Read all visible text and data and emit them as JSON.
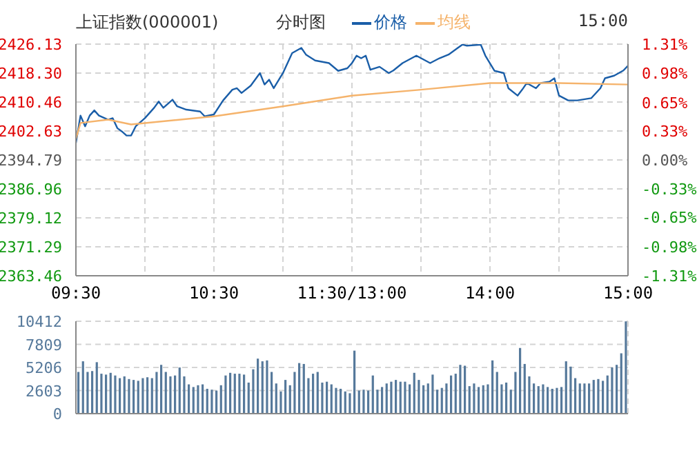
{
  "chart_data": [
    {
      "type": "line",
      "title": "上证指数(000001)",
      "subtitle": "分时图",
      "annotations": [
        "15:00"
      ],
      "legend": "top",
      "grid": true,
      "marker": "none",
      "categories": [
        "09:30",
        null,
        null,
        null,
        null,
        null,
        null,
        null,
        null,
        null,
        null,
        null,
        null,
        null,
        null,
        null,
        null,
        null,
        null,
        null,
        null,
        null,
        null,
        null,
        null,
        null,
        null,
        null,
        null,
        null,
        "10:30",
        null,
        null,
        null,
        null,
        null,
        null,
        null,
        null,
        null,
        null,
        null,
        null,
        null,
        null,
        null,
        null,
        null,
        null,
        null,
        null,
        null,
        null,
        null,
        null,
        null,
        null,
        null,
        null,
        null,
        "11:30/13:00",
        null,
        null,
        null,
        null,
        null,
        null,
        null,
        null,
        null,
        null,
        null,
        null,
        null,
        null,
        null,
        null,
        null,
        null,
        null,
        null,
        null,
        null,
        null,
        null,
        null,
        null,
        null,
        null,
        null,
        "14:00",
        null,
        null,
        null,
        null,
        null,
        null,
        null,
        null,
        null,
        null,
        null,
        null,
        null,
        null,
        null,
        null,
        null,
        null,
        null,
        null,
        null,
        null,
        null,
        null,
        null,
        null,
        null,
        null,
        null,
        "15:00"
      ],
      "ylim": [
        2363.46,
        2426.13
      ],
      "yticks": [
        2363.46,
        2371.29,
        2379.12,
        2386.96,
        2394.79,
        2402.63,
        2410.46,
        {
          "value": 2418.3,
          "label": "2418.30"
        },
        2426.13
      ],
      "y2lim": [
        -1.31,
        1.31
      ],
      "y2ticks": [
        {
          "value": -1.31,
          "label": "-1.31%"
        },
        {
          "value": -0.98,
          "label": "-0.98%"
        },
        {
          "value": -0.65,
          "label": "-0.65%"
        },
        {
          "value": -0.33,
          "label": "-0.33%"
        },
        {
          "value": 0,
          "label": "0.00%"
        },
        {
          "value": 0.33,
          "label": "0.33%"
        },
        {
          "value": 0.65,
          "label": "0.65%"
        },
        {
          "value": 0.98,
          "label": "0.98%"
        },
        {
          "value": 1.31,
          "label": "1.31%"
        }
      ],
      "series": [
        {
          "name": "价格",
          "color": "#1a5ea8",
          "values": [
            2399.4,
            2406.8,
            2403.9,
            2406.8,
            2408.2,
            2406.8,
            null,
            2405.7,
            2406.1,
            2403.4,
            2402.5,
            2401.4,
            2401.4,
            2403.9,
            null,
            2406.1,
            null,
            2408.9,
            2410.6,
            2408.9,
            null,
            2411.1,
            2409.3,
            null,
            2408.4,
            null,
            null,
            2407.9,
            2406.6,
            null,
            2407.1,
            null,
            2410.9,
            null,
            2413.8,
            2414.2,
            2412.9,
            null,
            2414.9,
            null,
            2418.3,
            2415.2,
            2416.5,
            2414.2,
            null,
            2418.3,
            2421.0,
            2423.7,
            null,
            2425.1,
            2423.3,
            null,
            2421.7,
            null,
            null,
            2421.0,
            null,
            2418.9,
            null,
            2419.6,
            2421.0,
            2423.0,
            2422.3,
            2423.0,
            2419.2,
            null,
            2420.0,
            null,
            2418.3,
            2419.0,
            null,
            2421.0,
            null,
            null,
            2423.0,
            null,
            null,
            2421.0,
            null,
            2422.3,
            null,
            2423.3,
            null,
            2425.1,
            2426.0,
            2425.7,
            null,
            null,
            2426.0,
            2423.0,
            null,
            2418.9,
            null,
            2418.3,
            2414.2,
            null,
            2412.2,
            2413.8,
            2415.6,
            null,
            2414.2,
            2415.6,
            null,
            2416.0,
            2416.9,
            2412.2,
            null,
            2410.9,
            null,
            2410.9,
            null,
            null,
            2411.5,
            null,
            2414.2,
            2416.9,
            null,
            2417.6,
            null,
            2419.0,
            2420.3
          ]
        },
        {
          "name": "均线",
          "color": "#f5b36b",
          "values": [
            2400.5,
            2404.8,
            null,
            null,
            null,
            null,
            null,
            2405.7,
            null,
            null,
            null,
            null,
            2404.4,
            null,
            null,
            null,
            null,
            null,
            null,
            null,
            null,
            null,
            null,
            null,
            null,
            null,
            null,
            null,
            null,
            null,
            2406.6,
            null,
            null,
            null,
            null,
            null,
            null,
            null,
            null,
            null,
            null,
            null,
            null,
            null,
            null,
            2409.3,
            null,
            null,
            null,
            null,
            null,
            null,
            null,
            null,
            null,
            null,
            null,
            null,
            null,
            null,
            2412.2,
            null,
            null,
            null,
            null,
            null,
            null,
            null,
            null,
            null,
            null,
            null,
            null,
            null,
            null,
            2413.8,
            null,
            null,
            null,
            null,
            null,
            null,
            null,
            null,
            null,
            null,
            null,
            null,
            null,
            null,
            2415.6,
            null,
            null,
            null,
            null,
            null,
            null,
            null,
            null,
            null,
            null,
            null,
            null,
            null,
            null,
            2415.6,
            null,
            null,
            null,
            null,
            null,
            null,
            null,
            null,
            null,
            null,
            null,
            null,
            null,
            null,
            2415.2
          ]
        }
      ]
    },
    {
      "type": "bar",
      "color": "#56799b",
      "grid": true,
      "tick_labels": "y",
      "categories": [
        null,
        null,
        null,
        null,
        null,
        null,
        null,
        null,
        null,
        null,
        null,
        null,
        null,
        null,
        null,
        null,
        null,
        null,
        null,
        null,
        null,
        null,
        null,
        null,
        null,
        null,
        null,
        null,
        null,
        null,
        null,
        null,
        null,
        null,
        null,
        null,
        null,
        null,
        null,
        null,
        null,
        null,
        null,
        null,
        null,
        null,
        null,
        null,
        null,
        null,
        null,
        null,
        null,
        null,
        null,
        null,
        null,
        null,
        null,
        null,
        null,
        null,
        null,
        null,
        null,
        null,
        null,
        null,
        null,
        null,
        null,
        null,
        null,
        null,
        null,
        null,
        null,
        null,
        null,
        null,
        null,
        null,
        null,
        null,
        null,
        null,
        null,
        null,
        null,
        null,
        null,
        null,
        null,
        null,
        null,
        null,
        null,
        null,
        null,
        null,
        null,
        null,
        null,
        null,
        null,
        null,
        null,
        null,
        null,
        null,
        null,
        null,
        null,
        null,
        null,
        null,
        null,
        null,
        null,
        null
      ],
      "ylim": [
        0,
        10412
      ],
      "yticks": [
        0,
        2603,
        5206,
        7809,
        10412
      ],
      "values": [
        4700,
        5900,
        4700,
        4800,
        5800,
        4500,
        4400,
        4600,
        4300,
        4000,
        4200,
        3900,
        3800,
        3700,
        4000,
        4100,
        4000,
        4700,
        5500,
        4700,
        4200,
        4300,
        5200,
        4200,
        3300,
        3000,
        3200,
        3300,
        2800,
        2700,
        2600,
        3200,
        4300,
        4600,
        4500,
        4500,
        4400,
        3500,
        5000,
        6200,
        5900,
        6000,
        4700,
        3400,
        2500,
        3800,
        3200,
        4700,
        5700,
        5600,
        4000,
        4500,
        4700,
        3500,
        3600,
        3300,
        2900,
        2800,
        2500,
        2300,
        7100,
        2600,
        2700,
        2600,
        4300,
        2700,
        3000,
        3400,
        3600,
        3800,
        3600,
        3600,
        3300,
        4600,
        3800,
        3200,
        3400,
        4400,
        2700,
        2900,
        3400,
        4300,
        4500,
        5500,
        5400,
        3100,
        3400,
        3000,
        3200,
        3300,
        6000,
        4700,
        3300,
        3500,
        2700,
        4700,
        7400,
        5600,
        4200,
        3400,
        3100,
        3300,
        3000,
        2800,
        2900,
        3000,
        5900,
        5300,
        4000,
        3400,
        3400,
        3400,
        3800,
        3900,
        3700,
        4300,
        5200,
        5500,
        6800,
        10400
      ]
    }
  ]
}
